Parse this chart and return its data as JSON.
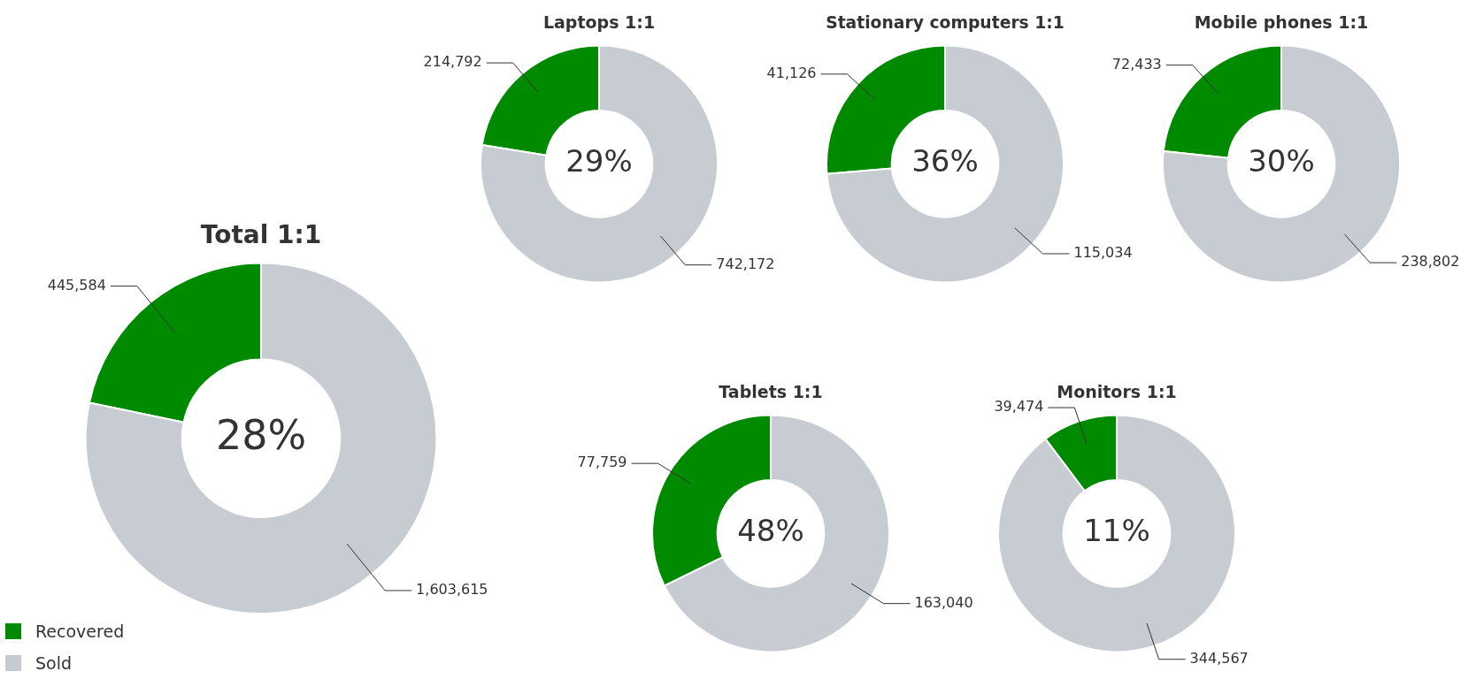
{
  "chart_data": [
    {
      "type": "donut",
      "title": "Total 1:1",
      "categories": [
        "Recovered",
        "Sold"
      ],
      "values": [
        445584,
        1603615
      ],
      "value_labels": [
        "445,584",
        "1,603,615"
      ],
      "colors": [
        "#008a00",
        "#c6ccd2"
      ],
      "legend": "bottom left",
      "annotations": [
        "28%"
      ]
    },
    {
      "type": "donut",
      "title": "Laptops 1:1",
      "categories": [
        null,
        null
      ],
      "values": [
        214792,
        742172
      ],
      "value_labels": [
        "214,792",
        "742,172"
      ],
      "colors": [
        "#008a00",
        "#c6ccd2"
      ],
      "annotations": [
        "29%"
      ]
    },
    {
      "type": "donut",
      "title": "Stationary computers 1:1",
      "categories": [
        null,
        null
      ],
      "values": [
        41126,
        115034
      ],
      "value_labels": [
        "41,126",
        "115,034"
      ],
      "colors": [
        "#008a00",
        "#c6ccd2"
      ],
      "annotations": [
        "36%"
      ]
    },
    {
      "type": "donut",
      "title": "Mobile phones 1:1",
      "categories": [
        null,
        null
      ],
      "values": [
        72433,
        238802
      ],
      "value_labels": [
        "72,433",
        "238,802"
      ],
      "colors": [
        "#008a00",
        "#c6ccd2"
      ],
      "annotations": [
        "30%"
      ]
    },
    {
      "type": "donut",
      "title": "Tablets 1:1",
      "categories": [
        null,
        null
      ],
      "values": [
        77759,
        163040
      ],
      "value_labels": [
        "77,759",
        "163,040"
      ],
      "colors": [
        "#008a00",
        "#c6ccd2"
      ],
      "annotations": [
        "48%"
      ]
    },
    {
      "type": "donut",
      "title": "Monitors 1:1",
      "categories": [
        null,
        null
      ],
      "values": [
        39474,
        344567
      ],
      "value_labels": [
        "39,474",
        "344,567"
      ],
      "colors": [
        "#008a00",
        "#c6ccd2"
      ],
      "annotations": [
        "11%"
      ]
    }
  ]
}
